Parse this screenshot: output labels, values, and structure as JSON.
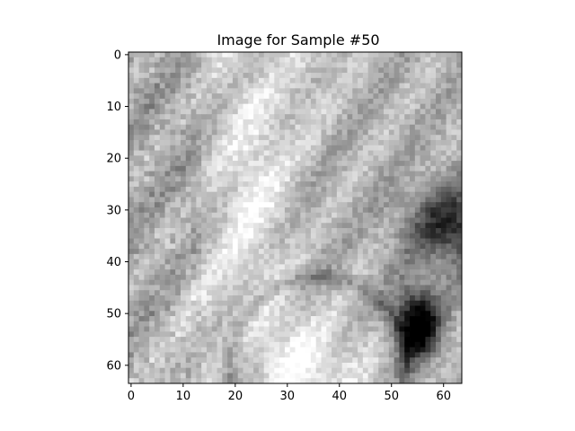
{
  "title": "Image for Sample #50",
  "chart_data": {
    "type": "heatmap",
    "title": "Image for Sample #50",
    "colormap": "gray",
    "colors": {
      "dark": "#000000",
      "light": "#ffffff",
      "axis": "#000000"
    },
    "width": 64,
    "height": 64,
    "xlim": [
      -0.5,
      63.5
    ],
    "ylim": [
      63.5,
      -0.5
    ],
    "x_ticks": [
      0,
      10,
      20,
      30,
      40,
      50,
      60
    ],
    "y_ticks": [
      0,
      10,
      20,
      30,
      40,
      50,
      60
    ],
    "x_tick_labels": [
      "0",
      "10",
      "20",
      "30",
      "40",
      "50",
      "60"
    ],
    "y_tick_labels": [
      "0",
      "10",
      "20",
      "30",
      "40",
      "50",
      "60"
    ],
    "xlabel": "",
    "ylabel": "",
    "grid": false,
    "legend": "none"
  }
}
